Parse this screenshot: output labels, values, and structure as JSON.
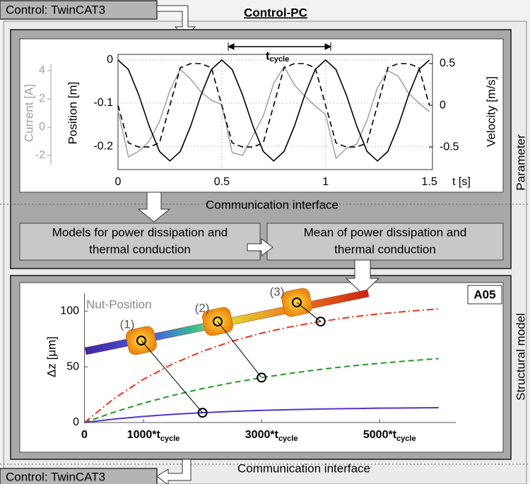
{
  "header": {
    "title": "Control-PC",
    "source": "Control: TwinCAT3"
  },
  "footer": {
    "target": "Control: TwinCAT3"
  },
  "interfaces": [
    "Communication interface",
    "Communication interface"
  ],
  "side_labels": [
    "Parameter",
    "Structural model"
  ],
  "boxes": [
    {
      "lines": [
        "Models for power dissipation and",
        "thermal conduction"
      ]
    },
    {
      "lines": [
        "Mean of power dissipation and",
        "thermal conduction"
      ]
    }
  ],
  "badge": "A05",
  "rod_labels": {
    "title": "Nut-Position",
    "nuts": [
      "(1)",
      "(2)",
      "(3)"
    ]
  },
  "chart_data": [
    {
      "type": "line",
      "x_label": "t [s]",
      "y_label": "Position [m]",
      "y2_label": "Velocity [m/s]",
      "y3_label": "Current [A]",
      "annotation": {
        "text": "t",
        "subscript": "cycle"
      },
      "x": [
        0,
        0.05,
        0.1,
        0.15,
        0.2,
        0.25,
        0.3,
        0.35,
        0.4,
        0.45,
        0.5,
        0.55,
        0.6,
        0.65,
        0.7,
        0.75,
        0.8,
        0.85,
        0.9,
        0.95,
        1,
        1.05,
        1.1,
        1.15,
        1.2,
        1.25,
        1.3,
        1.35,
        1.4,
        1.45,
        1.5
      ],
      "xlim": [
        0,
        1.515
      ],
      "xticks": [
        0,
        0.5,
        1,
        1.5
      ],
      "ylim": [
        -0.254,
        0.013
      ],
      "yticks": [
        -0.2,
        -0.1,
        0
      ],
      "y2lim": [
        -0.77,
        0.61
      ],
      "y2ticks": [
        -0.5,
        0,
        0.5
      ],
      "y3lim": [
        -3,
        5.15
      ],
      "y3ticks": [
        -2,
        0,
        2,
        4
      ],
      "grid": true,
      "series": [
        {
          "color": "#000000",
          "style": "solid",
          "values": [
            0,
            -0.022,
            -0.081,
            -0.153,
            -0.212,
            -0.234,
            -0.212,
            -0.153,
            -0.081,
            -0.022,
            0,
            -0.022,
            -0.081,
            -0.153,
            -0.212,
            -0.234,
            -0.212,
            -0.153,
            -0.081,
            -0.022,
            0,
            -0.022,
            -0.081,
            -0.153,
            -0.212,
            -0.234,
            -0.212,
            -0.153,
            -0.081,
            -0.022,
            0
          ]
        },
        {
          "color": "#000000",
          "style": "dashed",
          "axis": "y2",
          "values": [
            0,
            -0.45,
            -0.5,
            -0.5,
            -0.45,
            0,
            0.45,
            0.5,
            0.5,
            0.45,
            0,
            -0.45,
            -0.5,
            -0.5,
            -0.45,
            0,
            0.45,
            0.5,
            0.5,
            0.45,
            0,
            -0.45,
            -0.5,
            -0.5,
            -0.45,
            0,
            0.45,
            0.5,
            0.5,
            0.45,
            0
          ]
        },
        {
          "color": "#a0a0a0",
          "style": "solid",
          "axis": "y3",
          "values": [
            1.2,
            -2.1,
            -1.7,
            -1.0,
            0.4,
            2.6,
            4.1,
            3.4,
            2.5,
            1.9,
            1.6,
            -1.8,
            -2.0,
            -0.6,
            0.8,
            3.1,
            4.3,
            3.0,
            2.2,
            1.5,
            0.9,
            -2.2,
            -1.5,
            -1.2,
            0.5,
            2.8,
            4.0,
            3.6,
            2.4,
            1.7,
            1.1
          ]
        }
      ]
    },
    {
      "type": "line",
      "y_label": "Δz [μm]",
      "x": [
        0,
        500,
        1000,
        1500,
        2000,
        2500,
        3000,
        3500,
        4000,
        4500,
        5000,
        5500,
        6000
      ],
      "xlim": [
        0,
        6290
      ],
      "xticks": [
        0,
        {
          "value": 1000,
          "label": "1000*t",
          "subscript": "cycle"
        },
        {
          "value": 3000,
          "label": "3000*t",
          "subscript": "cycle"
        },
        {
          "value": 5000,
          "label": "5000*t",
          "subscript": "cycle"
        }
      ],
      "ylim": [
        0,
        116
      ],
      "yticks": [
        0,
        50,
        100
      ],
      "series": [
        {
          "color": "#ee3322",
          "style": "dashdot",
          "values": [
            0,
            21.5,
            38.8,
            52.7,
            63.9,
            72.9,
            80.2,
            86.0,
            90.6,
            94.5,
            97.5,
            99.9,
            101.9
          ]
        },
        {
          "color": "#229922",
          "style": "dashed",
          "values": [
            0,
            9.3,
            17.4,
            24.4,
            30.5,
            35.7,
            40.3,
            44.2,
            47.7,
            50.7,
            53.2,
            55.4,
            57.4
          ]
        },
        {
          "color": "#5533cc",
          "style": "solid",
          "values": [
            0,
            3.1,
            5.5,
            7.4,
            8.8,
            10.0,
            10.9,
            11.6,
            12.1,
            12.5,
            12.9,
            13.1,
            13.3
          ]
        }
      ]
    }
  ]
}
